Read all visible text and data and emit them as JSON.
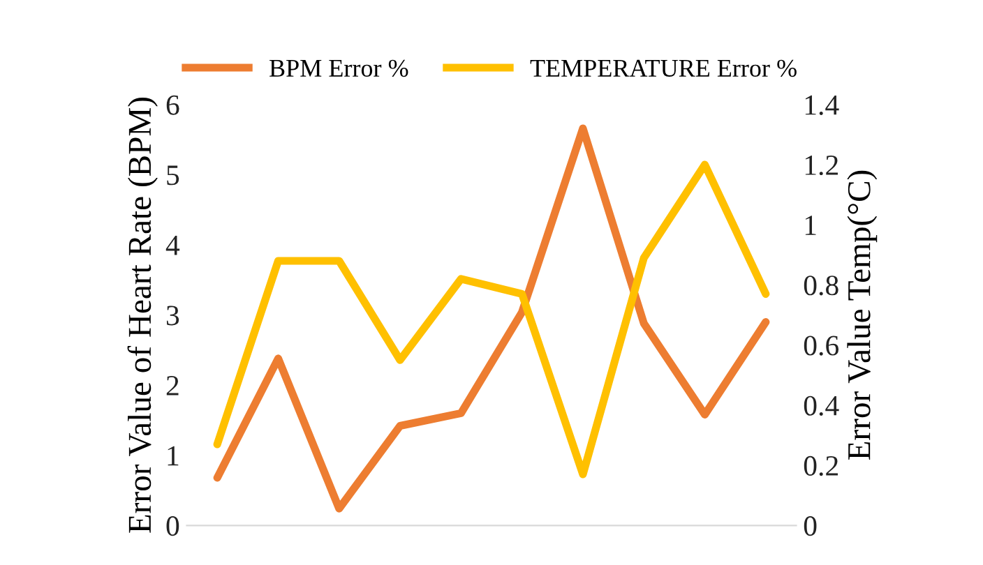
{
  "chart_data": {
    "type": "line",
    "ylabel": "Error Value of Heart Rate (BPM)",
    "y2label": "Error Value Temp(°C)",
    "categories": [
      null,
      null,
      null,
      null,
      null,
      null,
      null,
      null,
      null,
      null
    ],
    "series": [
      {
        "name": "BPM Error %",
        "color": "#ed7d31",
        "values": [
          0.68,
          2.38,
          0.24,
          1.42,
          1.6,
          3.04,
          5.66,
          2.88,
          1.58,
          2.9
        ]
      },
      {
        "name": "TEMPERATURE Error %",
        "color": "#ffc000",
        "axis": "y2",
        "values": [
          0.27,
          0.88,
          0.88,
          0.55,
          0.82,
          0.77,
          0.17,
          0.89,
          1.2,
          0.77
        ]
      }
    ],
    "ylim": [
      0,
      6
    ],
    "yticks": [
      0,
      1,
      2,
      3,
      4,
      5,
      6
    ],
    "y2lim": [
      0,
      1.4
    ],
    "y2ticks": [
      0,
      {
        "value": 0.2,
        "label": "0.2"
      },
      {
        "value": 0.4,
        "label": "0.4"
      },
      {
        "value": 0.6,
        "label": "0.6"
      },
      {
        "value": 0.8,
        "label": "0.8"
      },
      1,
      {
        "value": 1.2,
        "label": "1.2"
      },
      {
        "value": 1.4,
        "label": "1.4"
      }
    ],
    "legend": "top",
    "grid": false,
    "marker": "none",
    "line_style": "solid"
  }
}
